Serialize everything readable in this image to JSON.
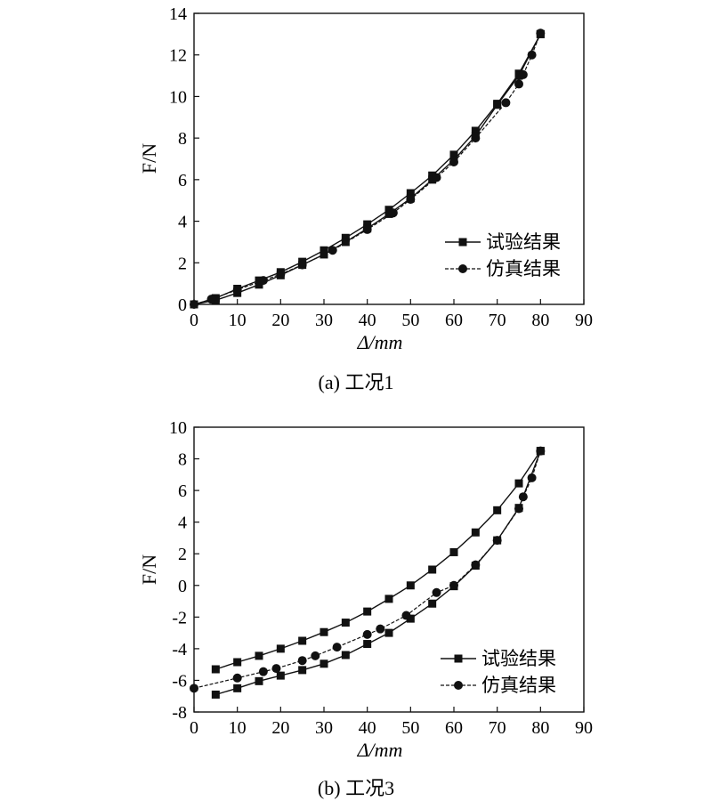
{
  "chart_data": [
    {
      "type": "line",
      "caption": "(a) 工况1",
      "xlabel": "Δ/mm",
      "ylabel": "F/N",
      "xlim": [
        0,
        90
      ],
      "ylim": [
        0,
        14
      ],
      "x_ticks": [
        0,
        10,
        20,
        30,
        40,
        50,
        60,
        70,
        80,
        90
      ],
      "y_ticks": [
        0,
        2,
        4,
        6,
        8,
        10,
        12,
        14
      ],
      "legend_position": "lower-right",
      "grid": false,
      "series": [
        {
          "name": "试验结果",
          "marker": "square",
          "line_style": "solid",
          "x": [
            0,
            5,
            10,
            15,
            20,
            25,
            30,
            35,
            40,
            45,
            50,
            55,
            60,
            65,
            70,
            75,
            80
          ],
          "y": [
            0.0,
            0.3,
            0.75,
            1.15,
            1.55,
            2.05,
            2.6,
            3.2,
            3.85,
            4.55,
            5.35,
            6.2,
            7.2,
            8.35,
            9.65,
            11.1,
            13.0
          ]
        },
        {
          "name": "试验结果",
          "marker": "square",
          "line_style": "solid",
          "x": [
            0,
            5,
            10,
            15,
            20,
            25,
            30,
            35,
            40,
            45,
            50,
            55,
            60,
            65,
            70,
            75,
            80
          ],
          "y": [
            0.0,
            0.2,
            0.55,
            0.95,
            1.4,
            1.9,
            2.4,
            3.0,
            3.65,
            4.35,
            5.1,
            6.0,
            6.95,
            8.1,
            9.6,
            11.0,
            13.0
          ]
        },
        {
          "name": "仿真结果",
          "marker": "circle",
          "line_style": "dashed",
          "x": [
            0,
            4,
            10,
            16,
            20,
            25,
            32,
            40,
            46,
            50,
            56,
            60,
            65,
            72,
            75,
            76,
            78,
            80
          ],
          "y": [
            0.0,
            0.25,
            0.7,
            1.15,
            1.45,
            1.9,
            2.6,
            3.6,
            4.4,
            5.05,
            6.1,
            6.85,
            8.0,
            9.7,
            10.6,
            11.05,
            12.0,
            13.05
          ]
        }
      ]
    },
    {
      "type": "line",
      "caption": "(b) 工况3",
      "xlabel": "Δ/mm",
      "ylabel": "F/N",
      "xlim": [
        0,
        90
      ],
      "ylim": [
        -8,
        10
      ],
      "x_ticks": [
        0,
        10,
        20,
        30,
        40,
        50,
        60,
        70,
        80,
        90
      ],
      "y_ticks": [
        -8,
        -6,
        -4,
        -2,
        0,
        2,
        4,
        6,
        8,
        10
      ],
      "legend_position": "lower-right",
      "grid": false,
      "series": [
        {
          "name": "试验结果",
          "marker": "square",
          "line_style": "solid",
          "x": [
            5,
            10,
            15,
            20,
            25,
            30,
            35,
            40,
            45,
            50,
            55,
            60,
            65,
            70,
            75,
            80
          ],
          "y": [
            -5.3,
            -4.85,
            -4.45,
            -4.0,
            -3.5,
            -2.95,
            -2.35,
            -1.65,
            -0.85,
            0.0,
            1.0,
            2.1,
            3.35,
            4.75,
            6.45,
            8.5
          ]
        },
        {
          "name": "试验结果",
          "marker": "square",
          "line_style": "solid",
          "x": [
            5,
            10,
            15,
            20,
            25,
            30,
            35,
            40,
            45,
            50,
            55,
            60,
            65,
            70,
            75,
            80
          ],
          "y": [
            -6.9,
            -6.5,
            -6.05,
            -5.7,
            -5.35,
            -4.95,
            -4.4,
            -3.7,
            -3.0,
            -2.1,
            -1.15,
            -0.05,
            1.25,
            2.85,
            4.9,
            8.5
          ]
        },
        {
          "name": "仿真结果",
          "marker": "circle",
          "line_style": "dashed",
          "x": [
            0,
            10,
            16,
            19,
            25,
            28,
            33,
            40,
            43,
            49,
            56,
            60,
            65,
            70,
            75,
            76,
            78,
            80
          ],
          "y": [
            -6.5,
            -5.85,
            -5.45,
            -5.25,
            -4.75,
            -4.45,
            -3.9,
            -3.1,
            -2.75,
            -1.9,
            -0.45,
            0.0,
            1.3,
            2.85,
            4.85,
            5.6,
            6.8,
            8.5
          ]
        }
      ]
    }
  ]
}
